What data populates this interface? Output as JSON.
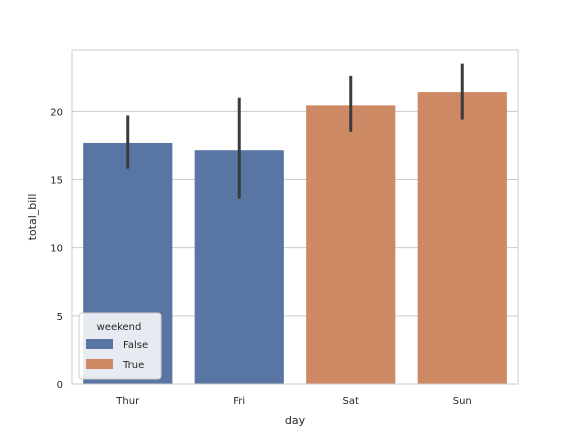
{
  "chart_data": {
    "type": "bar",
    "categories": [
      "Thur",
      "Fri",
      "Sat",
      "Sun"
    ],
    "values": [
      17.68,
      17.15,
      20.44,
      21.41
    ],
    "error_low": [
      15.8,
      13.6,
      18.5,
      19.4
    ],
    "error_high": [
      19.7,
      21.0,
      22.6,
      23.5
    ],
    "hue_values": [
      "False",
      "False",
      "True",
      "True"
    ],
    "xlabel": "day",
    "ylabel": "total_bill",
    "ylim": [
      0,
      24.5
    ],
    "yticks": [
      0,
      5,
      10,
      15,
      20
    ],
    "grid": "y",
    "legend": {
      "title": "weekend",
      "placement": "lower-left",
      "entries": [
        {
          "label": "False",
          "color": "#5975a4"
        },
        {
          "label": "True",
          "color": "#cc8963"
        }
      ]
    },
    "colors": {
      "False": "#5975a4",
      "True": "#cc8963",
      "errorbar": "#3b3b3b",
      "grid": "#cccccc",
      "frame": "#cccccc"
    }
  }
}
